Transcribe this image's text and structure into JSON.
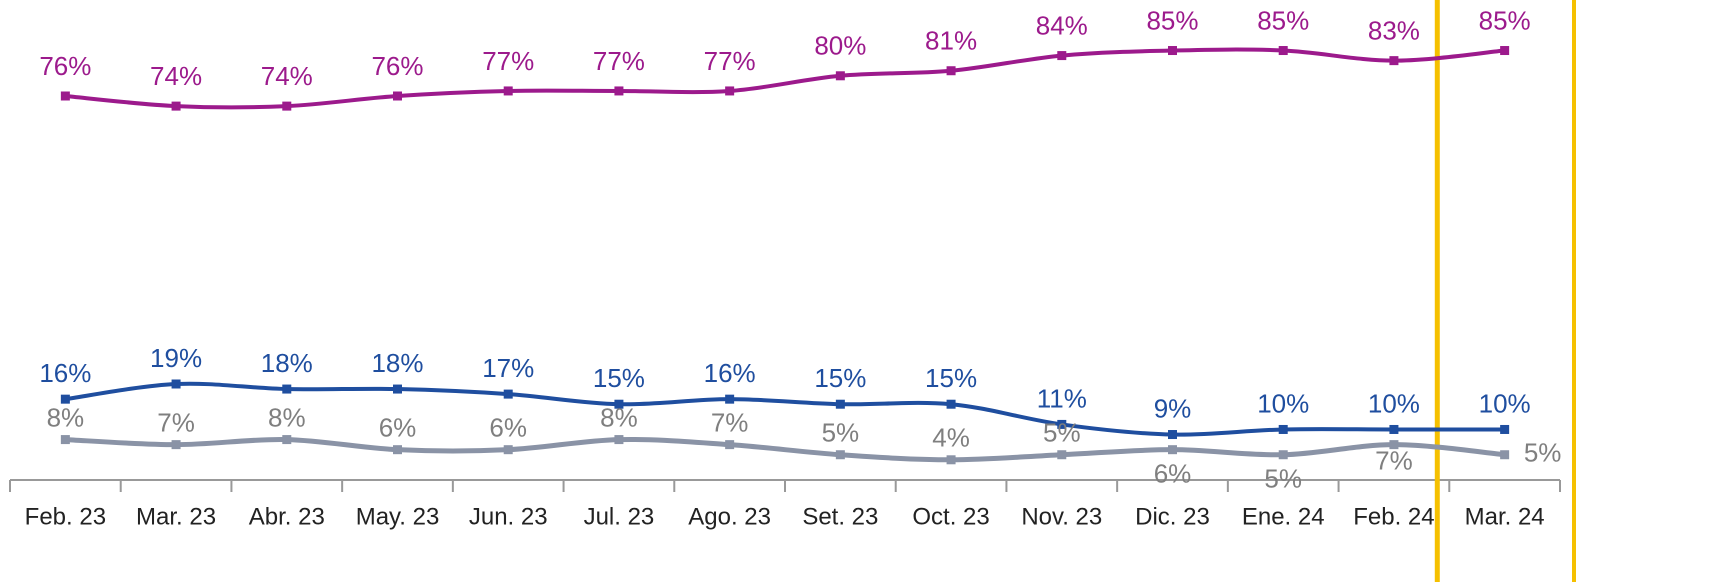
{
  "chart_data": {
    "type": "line",
    "categories": [
      "Feb. 23",
      "Mar. 23",
      "Abr. 23",
      "May. 23",
      "Jun. 23",
      "Jul. 23",
      "Ago. 23",
      "Set. 23",
      "Oct. 23",
      "Nov. 23",
      "Dic. 23",
      "Ene. 24",
      "Feb. 24",
      "Mar. 24"
    ],
    "series": [
      {
        "color": "#9c1a8c",
        "values": [
          76,
          74,
          74,
          76,
          77,
          77,
          77,
          80,
          81,
          84,
          85,
          85,
          83,
          85
        ],
        "value_labels": [
          "76%",
          "74%",
          "74%",
          "76%",
          "77%",
          "77%",
          "77%",
          "80%",
          "81%",
          "84%",
          "85%",
          "85%",
          "83%",
          "85%"
        ]
      },
      {
        "color": "#1f4e9f",
        "values": [
          16,
          19,
          18,
          18,
          17,
          15,
          16,
          15,
          15,
          11,
          9,
          10,
          10,
          10
        ],
        "value_labels": [
          "16%",
          "19%",
          "18%",
          "18%",
          "17%",
          "15%",
          "16%",
          "15%",
          "15%",
          "11%",
          "9%",
          "10%",
          "10%",
          "10%"
        ]
      },
      {
        "color": "#8a93a6",
        "values": [
          8,
          7,
          8,
          6,
          6,
          8,
          7,
          5,
          4,
          5,
          6,
          5,
          7,
          5
        ],
        "value_labels": [
          "8%",
          "7%",
          "8%",
          "6%",
          "6%",
          "8%",
          "7%",
          "5%",
          "4%",
          "5%",
          "6%",
          "5%",
          "7%",
          "5%"
        ]
      }
    ],
    "ylim": [
      0,
      95
    ]
  }
}
